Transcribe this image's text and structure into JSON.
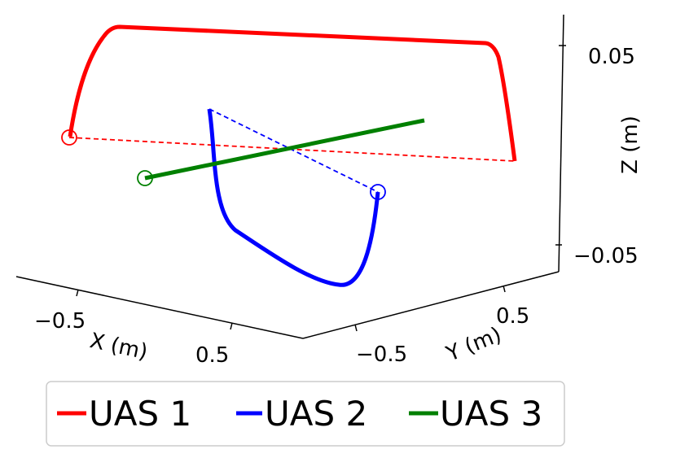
{
  "chart_data": {
    "type": "line",
    "projection": "3d",
    "xlabel": "X (m)",
    "ylabel": "Y (m)",
    "zlabel": "Z (m)",
    "x_ticks": [
      "−0.5",
      "0.5"
    ],
    "y_ticks": [
      "−0.5",
      "0.5"
    ],
    "z_ticks": [
      "0.05",
      "−0.05"
    ],
    "legend_position": "bottom",
    "series": [
      {
        "name": "UAS 1",
        "color": "#ff0000",
        "points": [
          {
            "x": -0.6,
            "y": -0.3,
            "z": 0.0
          },
          {
            "x": -0.6,
            "y": -0.3,
            "z": 0.05
          },
          {
            "x": 0.6,
            "y": 0.6,
            "z": 0.05
          },
          {
            "x": 0.6,
            "y": 0.6,
            "z": 0.0
          }
        ],
        "start_marker": "open-circle",
        "connector": "dashed"
      },
      {
        "name": "UAS 2",
        "color": "#0000ff",
        "points": [
          {
            "x": -0.3,
            "y": 0.0,
            "z": 0.0
          },
          {
            "x": -0.3,
            "y": 0.0,
            "z": -0.05
          },
          {
            "x": 0.3,
            "y": 0.0,
            "z": -0.05
          },
          {
            "x": 0.3,
            "y": 0.0,
            "z": 0.0
          }
        ],
        "start_marker": "open-circle",
        "connector": "dashed"
      },
      {
        "name": "UAS 3",
        "color": "#008000",
        "points": [
          {
            "x": 0.0,
            "y": -0.6,
            "z": 0.0
          },
          {
            "x": 0.0,
            "y": 0.6,
            "z": 0.0
          }
        ],
        "start_marker": "open-circle",
        "connector": "none"
      }
    ]
  }
}
